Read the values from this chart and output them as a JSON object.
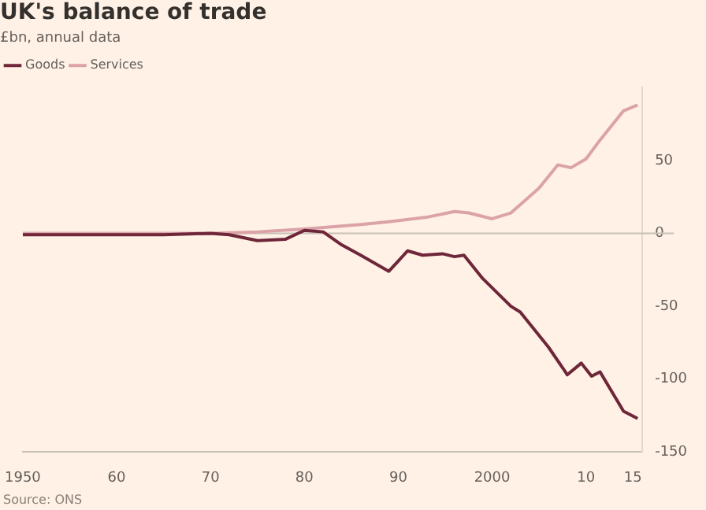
{
  "chart_data": {
    "type": "line",
    "title": "UK's balance of trade",
    "subtitle": "£bn, annual data",
    "x": [
      1950,
      1955,
      1960,
      1965,
      1970,
      1972,
      1975,
      1978,
      1980,
      1982,
      1984,
      1986,
      1989,
      1991,
      1992.6,
      1994.7,
      1996,
      1997,
      1999,
      2002,
      2003,
      2006,
      2007.6,
      2008,
      2009.5,
      2010.6,
      2011.5,
      2014,
      2015.5
    ],
    "series": [
      {
        "name": "Goods",
        "color": "#6e2639",
        "values": [
          -1,
          -1,
          -1,
          -1,
          0,
          -1,
          -5,
          -4,
          2,
          1,
          -8,
          -15,
          -26,
          -12,
          -15,
          -14,
          -16,
          -15,
          -31,
          -50,
          -54,
          -78,
          -93,
          -97,
          -89,
          -98,
          -95,
          -122,
          -127
        ]
      },
      {
        "name": "Services",
        "color": "#dba3a8",
        "x": [
          1950,
          1960,
          1970,
          1975,
          1980,
          1986,
          1989,
          1993,
          1996,
          1997.5,
          2000,
          2002,
          2005,
          2007,
          2008.4,
          2010,
          2011.5,
          2014,
          2015.5
        ],
        "values": [
          0,
          0,
          0,
          1,
          3,
          6,
          8,
          11,
          15,
          14,
          10,
          14,
          31,
          47,
          45,
          51,
          64,
          84,
          88
        ]
      }
    ],
    "xlim": [
      1950,
      2016
    ],
    "xticks": [
      {
        "value": 1950,
        "label": "1950"
      },
      {
        "value": 1960,
        "label": "60"
      },
      {
        "value": 1970,
        "label": "70"
      },
      {
        "value": 1980,
        "label": "80"
      },
      {
        "value": 1990,
        "label": "90"
      },
      {
        "value": 2000,
        "label": "2000"
      },
      {
        "value": 2010,
        "label": "10"
      },
      {
        "value": 2015,
        "label": "15"
      }
    ],
    "ylim": [
      -150,
      100
    ],
    "yticks": [
      -150,
      -100,
      -50,
      0,
      50
    ],
    "ref_lines": [
      {
        "axis": "y",
        "value": 0,
        "color": "#c8bfb6"
      }
    ],
    "legend": "top left",
    "grid": false,
    "marker": "none",
    "line_style": "solid",
    "annotations": [
      "Source: ONS"
    ]
  }
}
